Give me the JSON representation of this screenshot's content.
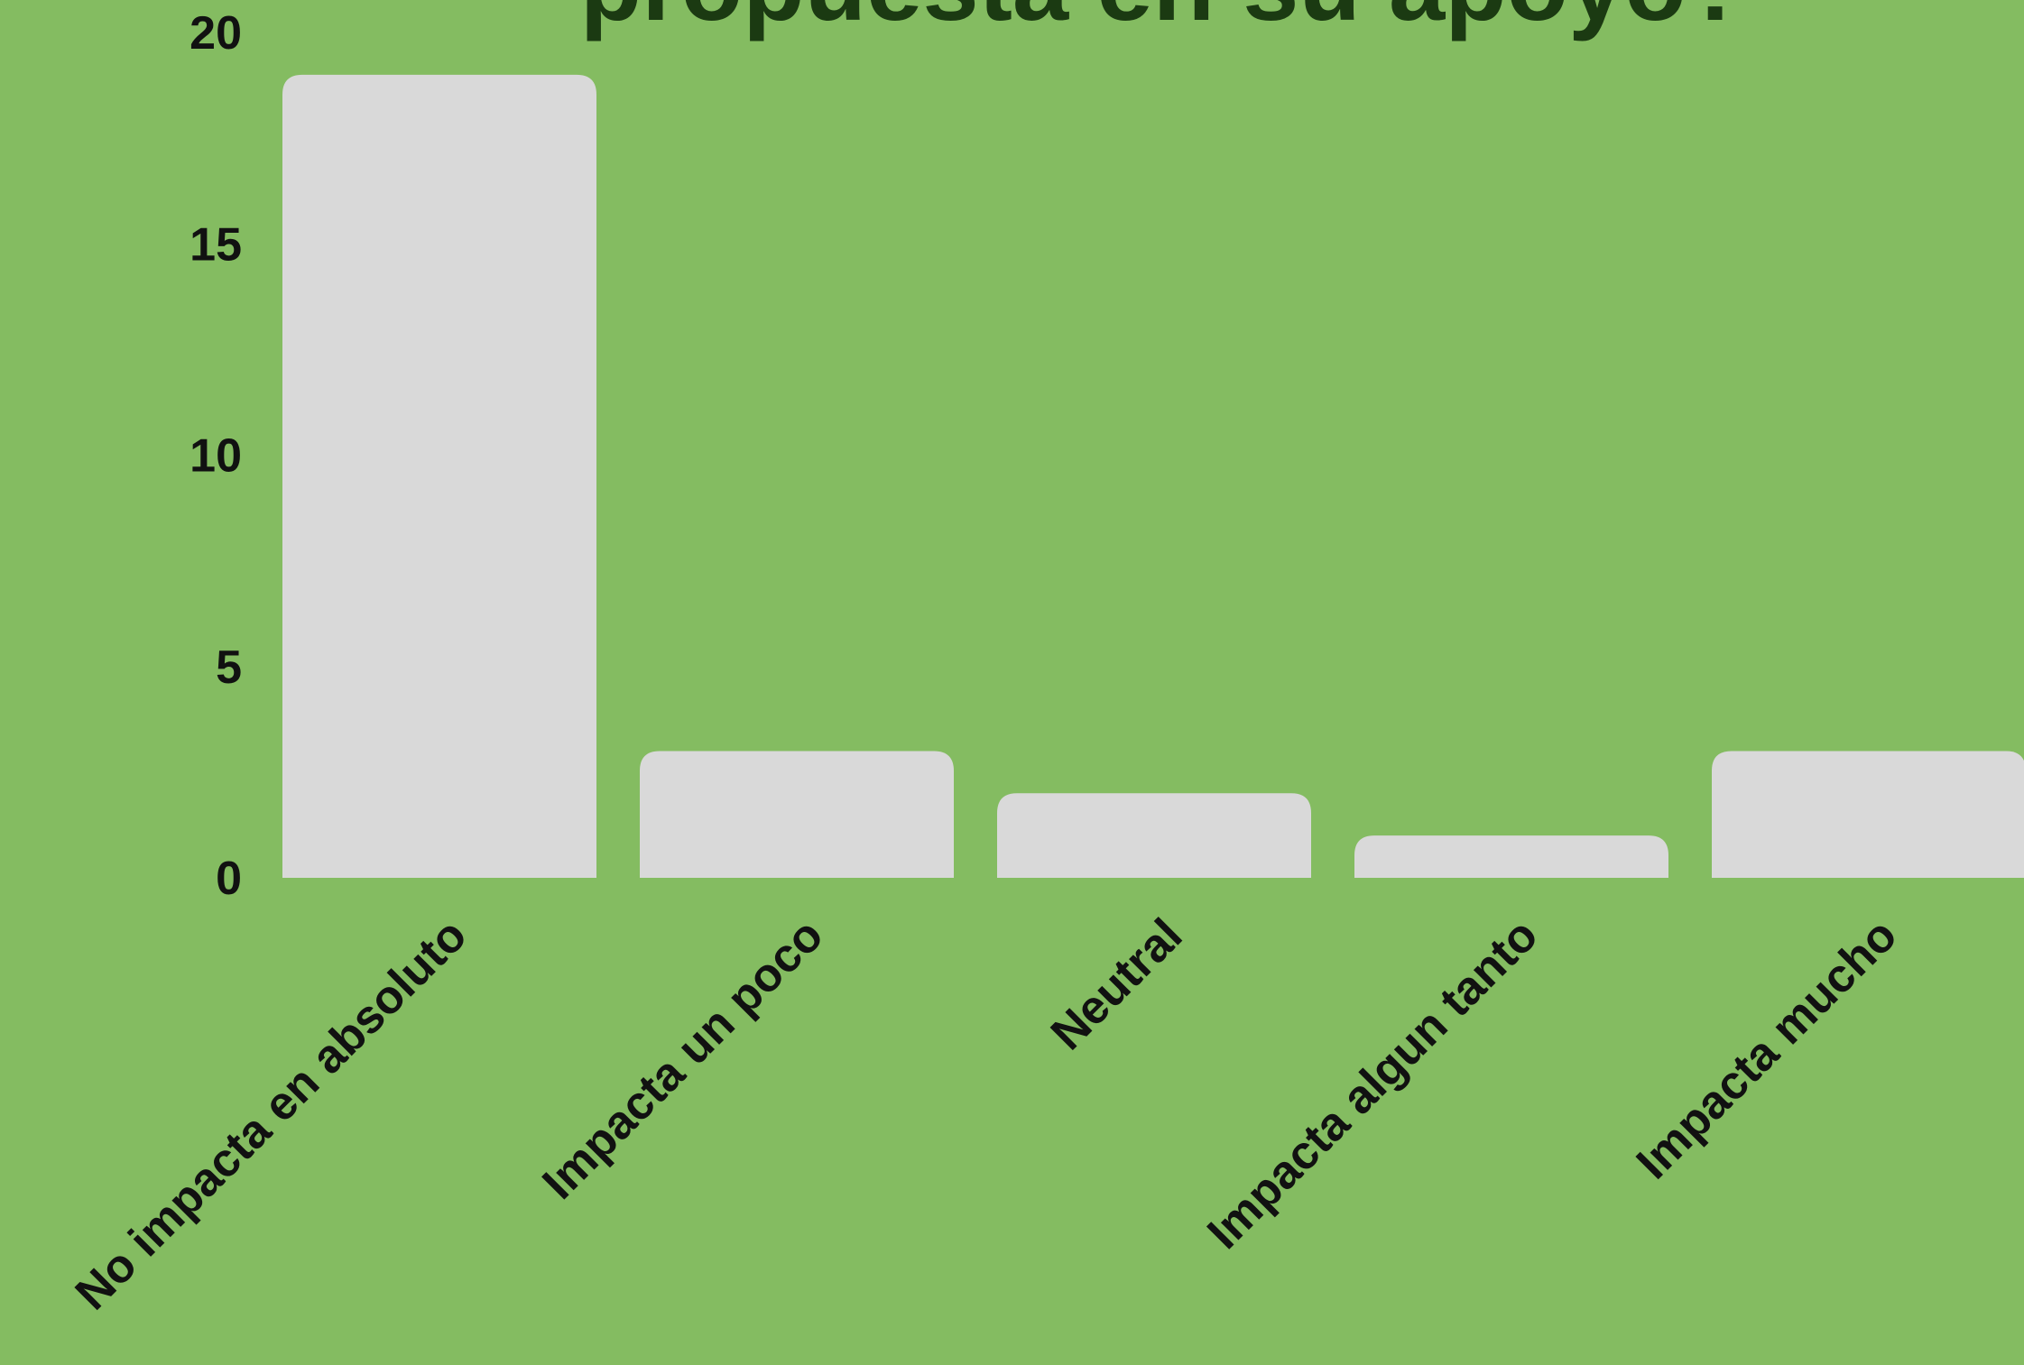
{
  "chart_data": {
    "type": "bar",
    "title": "propuesta en su apoyo?",
    "categories": [
      "No impacta en absoluto",
      "Impacta un poco",
      "Neutral",
      "Impacta algun tanto",
      "Impacta mucho"
    ],
    "values": [
      19,
      3,
      2,
      1,
      3
    ],
    "ylim": [
      0,
      20
    ],
    "yticks": [
      "0",
      "5",
      "10",
      "15",
      "20"
    ],
    "xlabel": "",
    "ylabel": "",
    "grid": false,
    "colors": {
      "background": "#84bc61",
      "bar": "#d9d9d9",
      "title": "#1b3a12",
      "text": "#111111"
    }
  }
}
